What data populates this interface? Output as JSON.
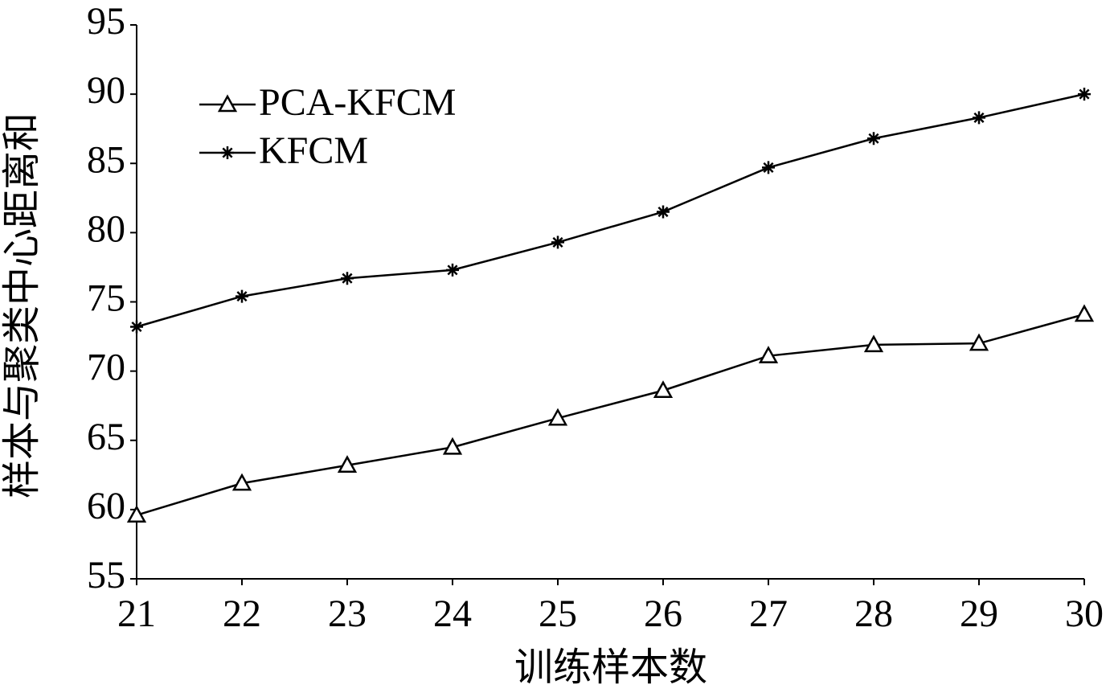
{
  "chart_data": {
    "type": "line",
    "x_label": "训练样本数",
    "y_label": "样本与聚类中心距离和",
    "x": [
      21,
      22,
      23,
      24,
      25,
      26,
      27,
      28,
      29,
      30
    ],
    "series": [
      {
        "name": "PCA-KFCM",
        "color": "#000000",
        "marker": "triangle",
        "values": [
          59.6,
          61.9,
          63.2,
          64.5,
          66.6,
          68.6,
          71.1,
          71.9,
          72.0,
          74.1
        ]
      },
      {
        "name": "KFCM",
        "color": "#000000",
        "marker": "asterisk",
        "values": [
          73.2,
          75.4,
          76.7,
          77.3,
          79.3,
          81.5,
          84.7,
          86.8,
          88.3,
          90.0
        ]
      }
    ],
    "xlim": [
      21,
      30
    ],
    "xticks": [
      21,
      22,
      23,
      24,
      25,
      26,
      27,
      28,
      29,
      30
    ],
    "ylim": [
      55,
      95
    ],
    "yticks": [
      55,
      60,
      65,
      70,
      75,
      80,
      85,
      90,
      95
    ],
    "grid": false,
    "legend": "upper left"
  }
}
